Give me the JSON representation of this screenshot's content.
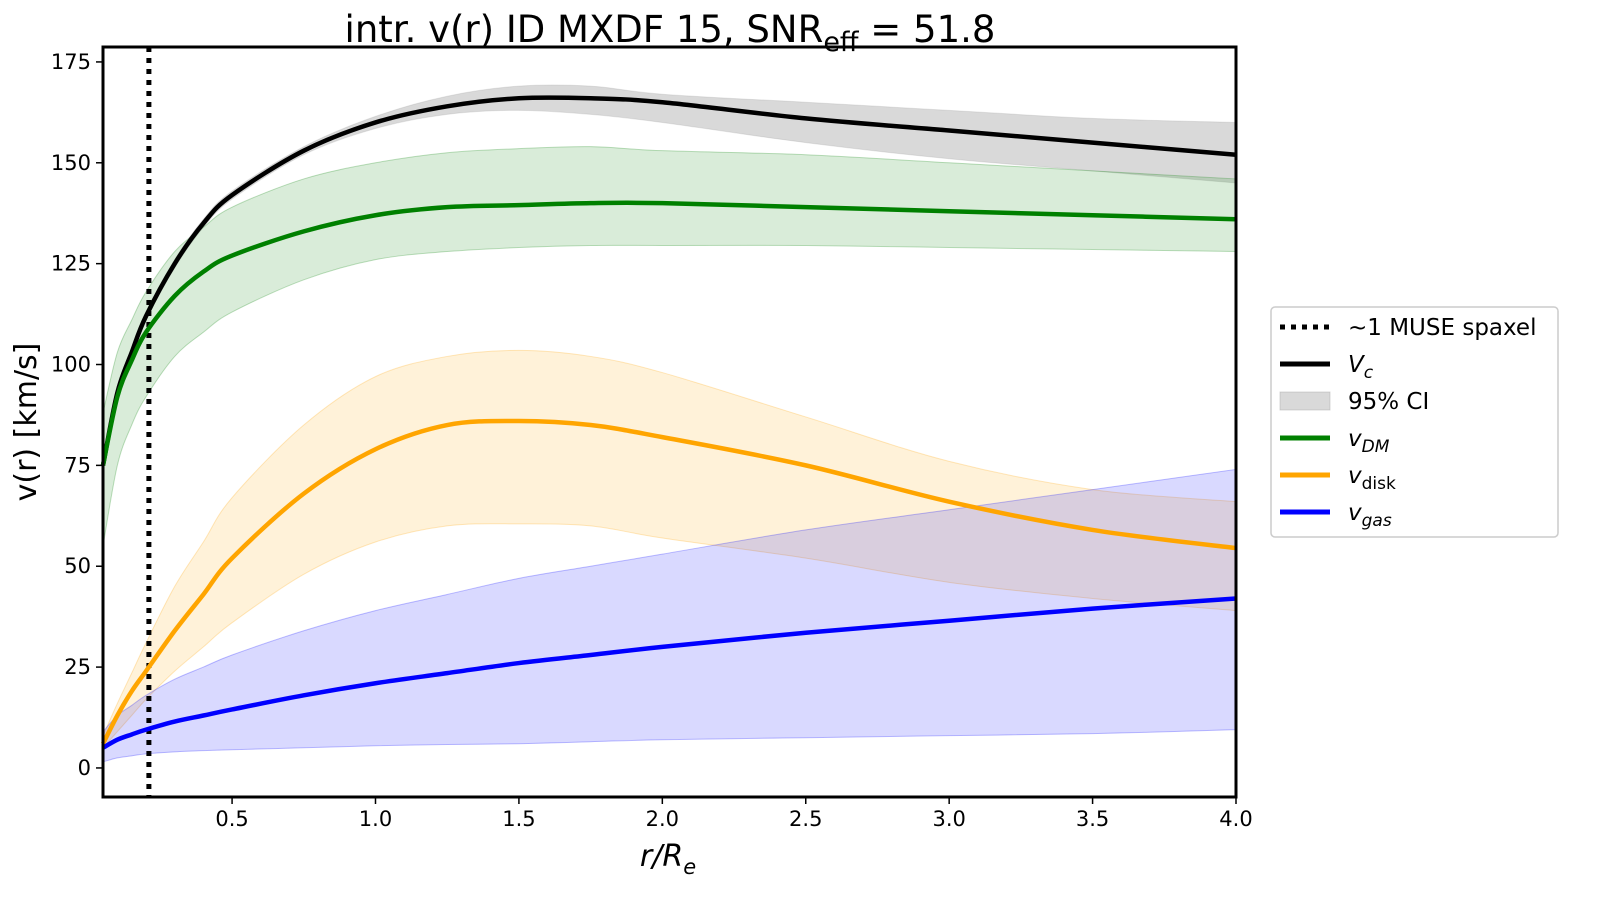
{
  "chart_data": {
    "type": "line",
    "title": "intr. v(r) ID MXDF 15, SNR",
    "title_sub": "eff",
    "title_suffix": " = 51.8",
    "xlabel": "r/R",
    "xlabel_sub": "e",
    "ylabel": "v(r) [km/s]",
    "x": [
      0.05,
      0.1,
      0.15,
      0.2,
      0.3,
      0.4,
      0.5,
      0.75,
      1.0,
      1.25,
      1.5,
      1.75,
      2.0,
      2.5,
      3.0,
      3.5,
      4.0
    ],
    "series": [
      {
        "name": "V",
        "name_sub": "c",
        "color": "#000000",
        "band_color": "#a0a0a0",
        "values": [
          75,
          93,
          103,
          112,
          125,
          135,
          142,
          153,
          160,
          164,
          166,
          166,
          165,
          161,
          158,
          155,
          152
        ],
        "lower": [
          74,
          92,
          102,
          111,
          124,
          134,
          141,
          152,
          158.5,
          162,
          163,
          162,
          160,
          155,
          151,
          148,
          145
        ],
        "upper": [
          76,
          94,
          104,
          113,
          126,
          136,
          143,
          154,
          161.5,
          166.5,
          169,
          169,
          167,
          165,
          163,
          161,
          160
        ]
      },
      {
        "name": "v",
        "name_sub": "DM",
        "color": "#008000",
        "band_color": "#008000",
        "values": [
          75,
          92,
          101,
          108,
          117,
          123,
          127,
          133,
          137,
          139,
          139.5,
          140,
          140,
          139,
          138,
          137,
          136
        ],
        "lower": [
          55,
          75,
          85,
          92,
          102,
          108,
          113,
          121,
          126,
          128,
          129,
          129.5,
          129.5,
          129.5,
          129,
          128.5,
          128
        ],
        "upper": [
          88,
          103,
          111,
          118,
          128,
          134,
          139,
          146,
          150,
          152.5,
          153.5,
          154,
          153,
          152,
          150,
          148,
          146
        ]
      },
      {
        "name": "v",
        "name_sub": "disk",
        "color": "#ffa500",
        "band_color": "#ffa500",
        "values": [
          6,
          13,
          19,
          24,
          34,
          43,
          52,
          68,
          79,
          85,
          86,
          85,
          82,
          75,
          66,
          59,
          54.5
        ],
        "lower": [
          5,
          9,
          13,
          17,
          24,
          30,
          36,
          48,
          56,
          60,
          60.5,
          60,
          57,
          52,
          46,
          42,
          39
        ],
        "upper": [
          8,
          16,
          23.5,
          31,
          45,
          56,
          67,
          85,
          97,
          102,
          103.5,
          102,
          98,
          87,
          76,
          69,
          66
        ]
      },
      {
        "name": "v",
        "name_sub": "gas",
        "color": "#0000ff",
        "band_color": "#0000ff",
        "values": [
          5,
          7,
          8.3,
          9.5,
          11.5,
          13,
          14.5,
          18,
          21,
          23.5,
          26,
          28,
          30,
          33.5,
          36.5,
          39.5,
          42
        ],
        "lower": [
          1.5,
          2.5,
          3,
          3.5,
          4,
          4.3,
          4.5,
          5,
          5.5,
          5.8,
          6,
          6.5,
          7,
          7.5,
          8,
          8.5,
          9.5
        ],
        "upper": [
          9,
          13,
          15.5,
          18,
          22,
          25,
          28,
          34,
          39,
          43,
          47,
          50,
          53,
          59,
          64,
          69,
          74
        ]
      }
    ],
    "band_label": "95% CI",
    "vline": {
      "x": 0.21,
      "label": "~1 MUSE spaxel"
    },
    "xlim": [
      0.05,
      4.0
    ],
    "xticks": [
      0.5,
      {
        "value": 1,
        "label": "1.0"
      },
      1.5,
      {
        "value": 2,
        "label": "2.0"
      },
      2.5,
      {
        "value": 3,
        "label": "3.0"
      },
      3.5,
      {
        "value": 4,
        "label": "4.0"
      }
    ],
    "ylim": [
      -7.2,
      178.7
    ],
    "yticks": [
      0,
      25,
      50,
      75,
      100,
      125,
      150,
      175
    ],
    "grid": false,
    "legend": "outside right"
  }
}
